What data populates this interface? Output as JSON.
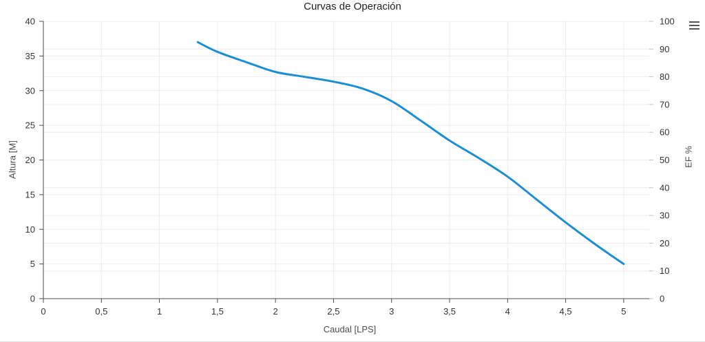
{
  "colors": {
    "series": "#1b8fd2",
    "grid": "#ececec",
    "axis_line": "#4d4d4d",
    "tick": "#4d4d4d",
    "right_tick": "#bfbfbf",
    "tick_label": "#333333",
    "axis_title": "#4d4d4d"
  },
  "context_menu": {
    "icon": "hamburger-icon"
  },
  "chart_data": {
    "type": "line",
    "title": "Curvas de Operación",
    "x_axis": {
      "title": "Caudal [LPS]",
      "min": 0,
      "max": 5.25,
      "tick_values": [
        0,
        0.5,
        1,
        1.5,
        2,
        2.5,
        3,
        3.5,
        4,
        4.5,
        5
      ],
      "tick_labels": [
        "0",
        "0,5",
        "1",
        "1,5",
        "2",
        "2,5",
        "3",
        "3,5",
        "4",
        "4,5",
        "5"
      ]
    },
    "y_axis_left": {
      "title": "Altura [M]",
      "min": 0,
      "max": 40,
      "tick_values": [
        0,
        5,
        10,
        15,
        20,
        25,
        30,
        35,
        40
      ],
      "tick_labels": [
        "0",
        "5",
        "10",
        "15",
        "20",
        "25",
        "30",
        "35",
        "40"
      ]
    },
    "y_axis_right": {
      "title": "EF %",
      "min": 0,
      "max": 100,
      "tick_values": [
        0,
        10,
        20,
        30,
        40,
        50,
        60,
        70,
        80,
        90,
        100
      ],
      "tick_labels": [
        "0",
        "10",
        "20",
        "30",
        "40",
        "50",
        "60",
        "70",
        "80",
        "90",
        "100"
      ]
    },
    "grid": true,
    "legend": false,
    "series": [
      {
        "name": "Altura",
        "axis": "left",
        "color": "#1b8fd2",
        "points": [
          [
            1.33,
            37.0
          ],
          [
            1.5,
            35.6
          ],
          [
            1.75,
            34.1
          ],
          [
            2.0,
            32.7
          ],
          [
            2.25,
            32.0
          ],
          [
            2.5,
            31.3
          ],
          [
            2.75,
            30.3
          ],
          [
            3.0,
            28.5
          ],
          [
            3.25,
            25.7
          ],
          [
            3.5,
            22.8
          ],
          [
            3.75,
            20.3
          ],
          [
            4.0,
            17.6
          ],
          [
            4.25,
            14.3
          ],
          [
            4.5,
            11.0
          ],
          [
            4.75,
            7.9
          ],
          [
            5.0,
            5.0
          ]
        ]
      }
    ]
  }
}
